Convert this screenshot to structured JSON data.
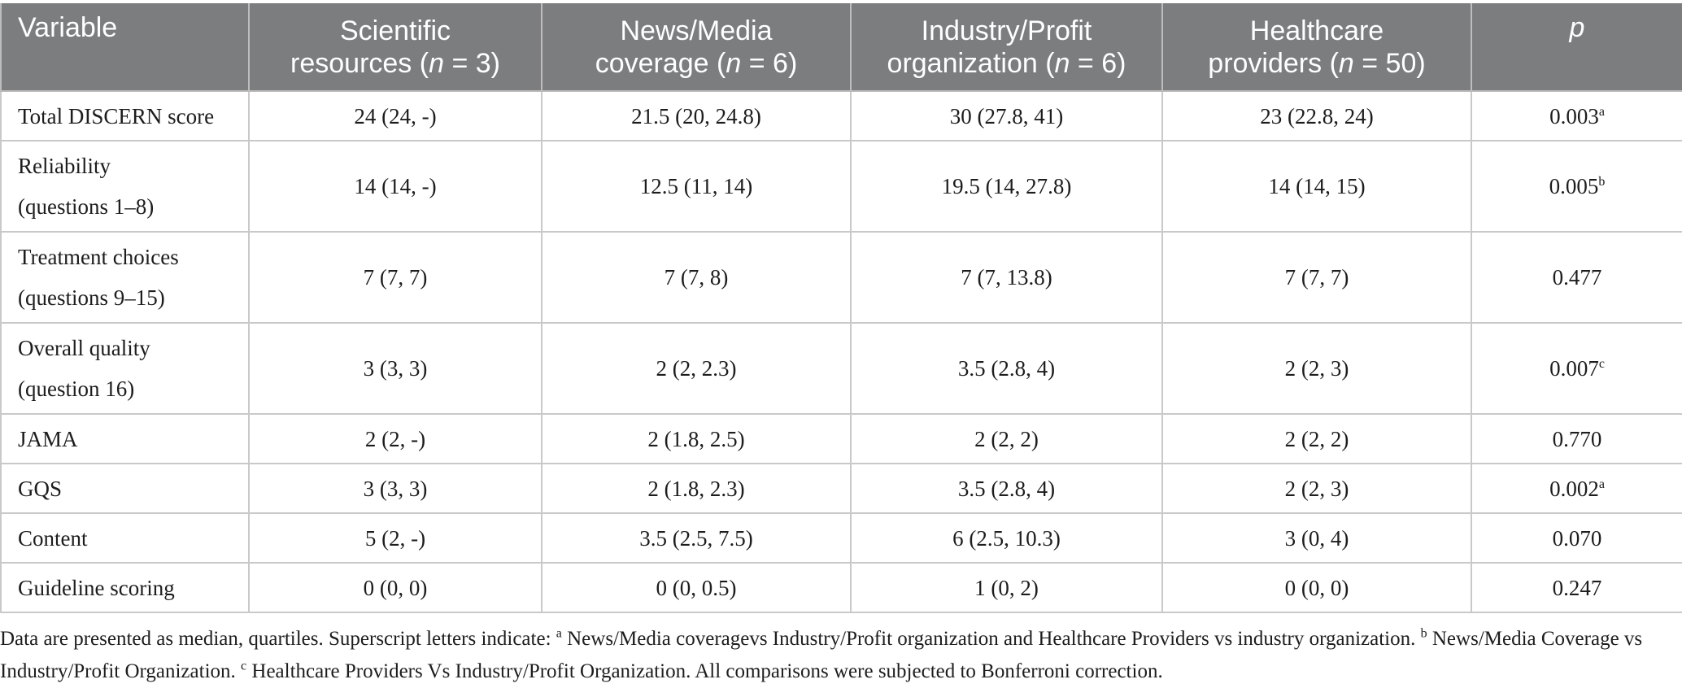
{
  "table": {
    "headers": [
      {
        "text": "Variable",
        "n": ""
      },
      {
        "line1": "Scientific",
        "line2": "resources (",
        "n": "n",
        "rest": " = 3)"
      },
      {
        "line1": "News/Media",
        "line2": "coverage (",
        "n": "n",
        "rest": " = 6)"
      },
      {
        "line1": "Industry/Profit",
        "line2": "organization (",
        "n": "n",
        "rest": " = 6)"
      },
      {
        "line1": "Healthcare",
        "line2": "providers (",
        "n": "n",
        "rest": " = 50)"
      },
      {
        "text": "p"
      }
    ],
    "rows": [
      {
        "label1": "Total DISCERN score",
        "label2": "",
        "c1": "24 (24, -)",
        "c2": "21.5 (20, 24.8)",
        "c3": "30 (27.8, 41)",
        "c4": "23 (22.8, 24)",
        "p": "0.003",
        "sup": "a"
      },
      {
        "label1": "Reliability",
        "label2": "(questions 1–8)",
        "c1": "14 (14, -)",
        "c2": "12.5 (11, 14)",
        "c3": "19.5 (14, 27.8)",
        "c4": "14 (14, 15)",
        "p": "0.005",
        "sup": "b"
      },
      {
        "label1": "Treatment choices",
        "label2": "(questions 9–15)",
        "c1": "7 (7, 7)",
        "c2": "7 (7, 8)",
        "c3": "7 (7, 13.8)",
        "c4": "7 (7, 7)",
        "p": "0.477",
        "sup": ""
      },
      {
        "label1": "Overall quality",
        "label2": "(question 16)",
        "c1": "3 (3, 3)",
        "c2": "2 (2, 2.3)",
        "c3": "3.5 (2.8, 4)",
        "c4": "2 (2, 3)",
        "p": "0.007",
        "sup": "c"
      },
      {
        "label1": "JAMA",
        "label2": "",
        "c1": "2 (2, -)",
        "c2": "2 (1.8, 2.5)",
        "c3": "2 (2, 2)",
        "c4": "2 (2, 2)",
        "p": "0.770",
        "sup": ""
      },
      {
        "label1": "GQS",
        "label2": "",
        "c1": "3 (3, 3)",
        "c2": "2 (1.8, 2.3)",
        "c3": "3.5 (2.8, 4)",
        "c4": "2 (2, 3)",
        "p": "0.002",
        "sup": "a"
      },
      {
        "label1": "Content",
        "label2": "",
        "c1": "5 (2, -)",
        "c2": "3.5 (2.5, 7.5)",
        "c3": "6 (2.5, 10.3)",
        "c4": "3 (0, 4)",
        "p": "0.070",
        "sup": ""
      },
      {
        "label1": "Guideline scoring",
        "label2": "",
        "c1": "0 (0, 0)",
        "c2": "0 (0, 0.5)",
        "c3": "1 (0, 2)",
        "c4": "0 (0, 0)",
        "p": "0.247",
        "sup": ""
      }
    ]
  },
  "note": {
    "intro": "Data are presented as median, quartiles. Superscript letters indicate: ",
    "a_sup": "a",
    "a_text": " News/Media coveragevs Industry/Profit organization and Healthcare Providers vs industry organization. ",
    "b_sup": "b",
    "b_text": " News/Media Coverage vs Industry/Profit Organization. ",
    "c_sup": "c",
    "c_text": " Healthcare Providers Vs Industry/Profit Organization. All comparisons were subjected to Bonferroni correction."
  }
}
